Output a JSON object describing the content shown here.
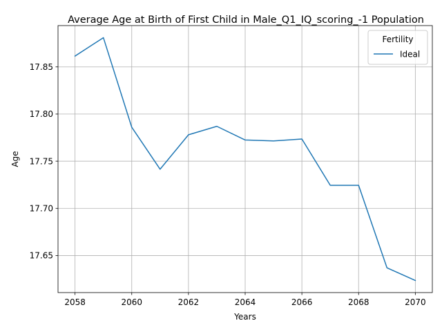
{
  "chart_data": {
    "type": "line",
    "title": "Average Age at Birth of First Child in Male_Q1_IQ_scoring_-1 Population",
    "xlabel": "Years",
    "ylabel": "Age",
    "x": [
      2058,
      2059,
      2060,
      2061,
      2062,
      2063,
      2064,
      2065,
      2066,
      2067,
      2068,
      2069,
      2070
    ],
    "series": [
      {
        "name": "Ideal",
        "color": "#1f77b4",
        "values": [
          17.8615,
          17.881,
          17.786,
          17.7415,
          17.778,
          17.787,
          17.7725,
          17.7715,
          17.7735,
          17.7245,
          17.7245,
          17.637,
          17.6235
        ]
      }
    ],
    "xlim": [
      2057.4,
      2070.6
    ],
    "ylim": [
      17.6107,
      17.8938
    ],
    "xticks": [
      "2058",
      "2060",
      "2062",
      "2064",
      "2066",
      "2068",
      "2070"
    ],
    "yticks": [
      "17.65",
      "17.70",
      "17.75",
      "17.80",
      "17.85"
    ],
    "grid": true,
    "legend": {
      "title": "Fertility",
      "placement": "top-right"
    }
  }
}
